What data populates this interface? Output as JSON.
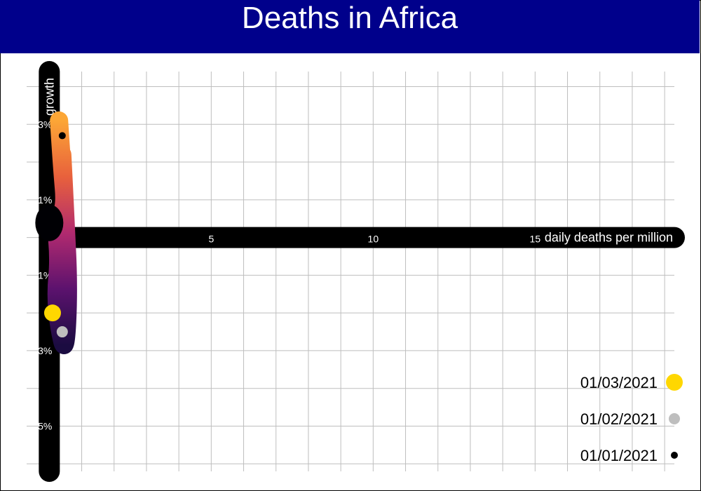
{
  "chart_data": {
    "type": "scatter",
    "title": "Deaths in Africa",
    "xlabel": "daily deaths per million",
    "ylabel": "growth",
    "xlim": [
      -0.7,
      19.3
    ],
    "ylim": [
      -6.2,
      4.4
    ],
    "x_ticks": [
      {
        "value": 5,
        "label": "5"
      },
      {
        "value": 10,
        "label": "10"
      },
      {
        "value": 15,
        "label": "15"
      }
    ],
    "y_ticks": [
      {
        "value": 3,
        "label": "3%"
      },
      {
        "value": 1,
        "label": "1%"
      },
      {
        "value": -1,
        "label": "-1%"
      },
      {
        "value": -3,
        "label": "-3%"
      },
      {
        "value": -5,
        "label": "-5%"
      }
    ],
    "grid": true,
    "trajectory": {
      "points": [
        {
          "x": 0.3,
          "y": 3.1
        },
        {
          "x": 0.4,
          "y": 1.8
        },
        {
          "x": 0.5,
          "y": 0.8
        },
        {
          "x": 0.2,
          "y": 0.4
        },
        {
          "x": 0.3,
          "y": -0.6
        },
        {
          "x": 0.2,
          "y": -1.5
        },
        {
          "x": 0.3,
          "y": -2.4
        },
        {
          "x": 0.5,
          "y": -3.1
        },
        {
          "x": 0.6,
          "y": -1.4
        },
        {
          "x": 0.5,
          "y": 0.5
        },
        {
          "x": 0.4,
          "y": 2.2
        }
      ]
    },
    "series": [
      {
        "name": "01/03/2021",
        "x": 0.1,
        "y": -2.0,
        "color": "#FFD700"
      },
      {
        "name": "01/02/2021",
        "x": 0.4,
        "y": -2.5,
        "color": "#BEBEBE"
      },
      {
        "name": "01/01/2021",
        "x": 0.4,
        "y": 2.7,
        "color": "#000000"
      }
    ],
    "legend_position": "bottom-right"
  },
  "colors": {
    "title_bar": "#00008B",
    "axis_bar": "#000000",
    "grid": "#BEBEBE",
    "trajectory_gradient": [
      "#FCA636",
      "#E8613C",
      "#B12A6F",
      "#5C126E",
      "#1B0C41",
      "#000004"
    ]
  }
}
